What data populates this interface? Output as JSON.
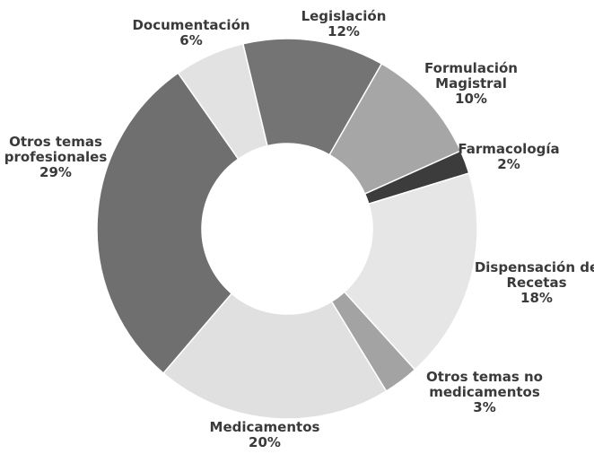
{
  "chart_data": {
    "type": "donut",
    "categories": [
      "Documentación",
      "Legislación",
      "Formulación Magistral",
      "Farmacología",
      "Dispensación de Recetas",
      "Otros temas no medicamentos",
      "Medicamentos",
      "Otros temas profesionales"
    ],
    "values": [
      6,
      12,
      10,
      2,
      18,
      3,
      20,
      29
    ],
    "value_labels": [
      "6%",
      "12%",
      "10%",
      "2%",
      "18%",
      "3%",
      "20%",
      "29%"
    ],
    "colors": [
      "#e2e2e2",
      "#747474",
      "#a6a6a6",
      "#3c3c3c",
      "#e6e6e6",
      "#a3a3a3",
      "#e0e0e0",
      "#6f6f6f"
    ]
  }
}
